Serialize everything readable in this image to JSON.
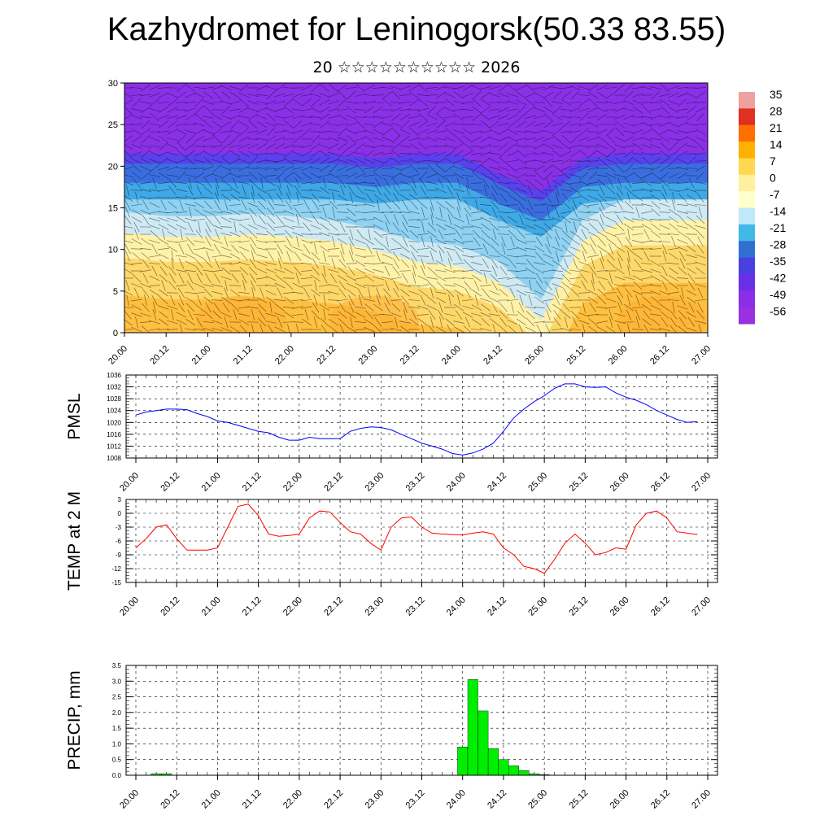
{
  "title": "Kazhydromet for Leninogorsk(50.33 83.55)",
  "subtitle": "20 ☆☆☆☆☆☆☆☆☆☆ 2026",
  "x_ticks": [
    "20.00",
    "20.12",
    "21.00",
    "21.12",
    "22.00",
    "22.12",
    "23.00",
    "23.12",
    "24.00",
    "24.12",
    "25.00",
    "25.12",
    "26.00",
    "26.12",
    "27.00"
  ],
  "chart_data": [
    {
      "type": "heatmap",
      "name": "cross-section",
      "ylim": [
        0,
        30
      ],
      "yticks": [
        "0",
        "5",
        "10",
        "15",
        "20",
        "25",
        "30"
      ],
      "colorbar_labels": [
        "35",
        "28",
        "21",
        "14",
        "7",
        "0",
        "-7",
        "-14",
        "-21",
        "-28",
        "-35",
        "-42",
        "-49",
        "-56"
      ],
      "colorbar_colors": [
        "#f0a0a0",
        "#e03020",
        "#ff7000",
        "#ffb000",
        "#ffd850",
        "#fff0a0",
        "#ffffcc",
        "#bfe8f8",
        "#40b8e8",
        "#3070d0",
        "#4a40e0",
        "#6a30e8",
        "#8a2ee8",
        "#9a30e0"
      ],
      "mixed_layer_top": [
        12.0,
        11.5,
        11.5,
        11.8,
        11.5,
        11.0,
        10.0,
        8.5,
        8.0,
        6.0,
        1.5,
        11.0,
        13.5,
        13.5,
        13.5
      ],
      "upper_boundary": [
        21.5,
        21.5,
        21.5,
        21.5,
        21.5,
        21.5,
        21.0,
        21.5,
        21.5,
        19.0,
        17.0,
        21.0,
        21.5,
        21.5,
        21.5
      ]
    },
    {
      "type": "line",
      "name": "pmsl",
      "ylabel": "PMSL",
      "ylim": [
        1008,
        1036
      ],
      "yticks": [
        "1008",
        "1012",
        "1016",
        "1020",
        "1024",
        "1028",
        "1032",
        "1036"
      ],
      "color": "#0000ff",
      "x": [
        0,
        3,
        6,
        9,
        12,
        15,
        18,
        21,
        24,
        27,
        30,
        33,
        36,
        39,
        42,
        45,
        48,
        51,
        54,
        57,
        60,
        63,
        66,
        69,
        72,
        75,
        78,
        81,
        84,
        87,
        90,
        93,
        96,
        99,
        102,
        105,
        108,
        111,
        114,
        117,
        120,
        123,
        126,
        129,
        132,
        135,
        138,
        141,
        144,
        147,
        150,
        153,
        156,
        159,
        162,
        165
      ],
      "values": [
        1022.5,
        1023.5,
        1024,
        1024.5,
        1024.5,
        1024.3,
        1023,
        1022,
        1020.5,
        1020,
        1019,
        1018,
        1017,
        1016.5,
        1015,
        1014,
        1014,
        1015,
        1014.5,
        1014.5,
        1014.5,
        1017,
        1018,
        1018.5,
        1018.3,
        1017.5,
        1016,
        1014.5,
        1013,
        1012,
        1011,
        1009.5,
        1009,
        1009.7,
        1011,
        1013,
        1017,
        1021.5,
        1024.5,
        1027,
        1029,
        1031.5,
        1033,
        1033,
        1032,
        1031.8,
        1032,
        1030,
        1028.5,
        1027.5,
        1026,
        1024,
        1022.5,
        1021,
        1020,
        1020.3
      ]
    },
    {
      "type": "line",
      "name": "temp2m",
      "ylabel": "TEMP at 2 M",
      "ylim": [
        -15,
        3
      ],
      "yticks": [
        "-15",
        "-12",
        "-9",
        "-6",
        "-3",
        "0",
        "3"
      ],
      "color": "#ff0000",
      "x": [
        0,
        3,
        6,
        9,
        12,
        15,
        18,
        21,
        24,
        27,
        30,
        33,
        36,
        39,
        42,
        45,
        48,
        51,
        54,
        57,
        60,
        63,
        66,
        69,
        72,
        75,
        78,
        81,
        84,
        87,
        90,
        93,
        96,
        99,
        102,
        105,
        108,
        111,
        114,
        117,
        120,
        123,
        126,
        129,
        132,
        135,
        138,
        141,
        144,
        147,
        150,
        153,
        156,
        159,
        162,
        165
      ],
      "values": [
        -7.5,
        -5.5,
        -3,
        -2.5,
        -5.5,
        -8,
        -8,
        -8,
        -7.5,
        -3,
        1.5,
        2,
        -0.5,
        -4.5,
        -5,
        -4.8,
        -4.5,
        -1,
        0.5,
        0.3,
        -2,
        -4,
        -4.5,
        -6.5,
        -8,
        -3,
        -1,
        -0.8,
        -3,
        -4.3,
        -4.5,
        -4.6,
        -4.7,
        -4.3,
        -4,
        -4.5,
        -7.5,
        -9,
        -11.5,
        -12,
        -13,
        -10,
        -6.5,
        -4.5,
        -6.5,
        -9,
        -8.5,
        -7.5,
        -7.8,
        -2.5,
        0,
        0.5,
        -1,
        -4,
        -4.3,
        -4.6
      ]
    },
    {
      "type": "bar",
      "name": "precip",
      "ylabel": "PRECIP, mm",
      "ylim": [
        0,
        3.5
      ],
      "yticks": [
        "0.0",
        "0.5",
        "1.0",
        "1.5",
        "2.0",
        "2.5",
        "3.0",
        "3.5"
      ],
      "color": "#00ee00",
      "bars": [
        {
          "x": 6,
          "value": 0.05
        },
        {
          "x": 9,
          "value": 0.05
        },
        {
          "x": 96,
          "value": 0.9
        },
        {
          "x": 99,
          "value": 3.05
        },
        {
          "x": 102,
          "value": 2.05
        },
        {
          "x": 105,
          "value": 0.85
        },
        {
          "x": 108,
          "value": 0.5
        },
        {
          "x": 111,
          "value": 0.3
        },
        {
          "x": 114,
          "value": 0.15
        },
        {
          "x": 117,
          "value": 0.05
        },
        {
          "x": 120,
          "value": 0.02
        }
      ]
    }
  ]
}
